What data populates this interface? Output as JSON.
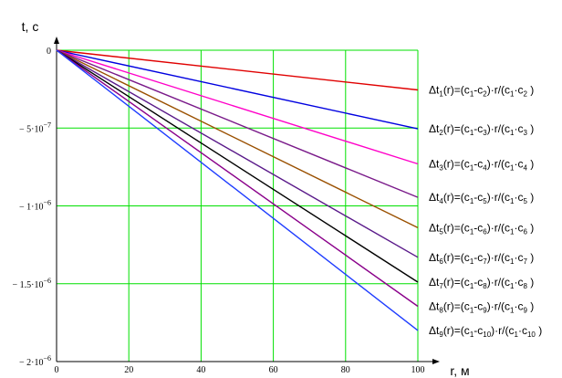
{
  "chart_data": {
    "type": "line",
    "ylabel": "t, c",
    "xlabel": "r, м",
    "xlim": [
      0,
      100
    ],
    "ylim": [
      -2e-06,
      0
    ],
    "grid": true,
    "grid_color": "#00e000",
    "legend_placement": "right",
    "x_ticks": [
      {
        "value": 0,
        "label": "0"
      },
      {
        "value": 20,
        "label": "20"
      },
      {
        "value": 40,
        "label": "40"
      },
      {
        "value": 60,
        "label": "60"
      },
      {
        "value": 80,
        "label": "80"
      },
      {
        "value": 100,
        "label": "100"
      }
    ],
    "y_ticks": [
      {
        "value": 0,
        "label": "0",
        "mantissa": "0",
        "exponent": ""
      },
      {
        "value": -5e-07,
        "label": "− 5·10^−7",
        "mantissa": "− 5·10",
        "exponent": "−7"
      },
      {
        "value": -1e-06,
        "label": "− 1·10^−6",
        "mantissa": "− 1·10",
        "exponent": "−6"
      },
      {
        "value": -1.5e-06,
        "label": "− 1.5·10^−6",
        "mantissa": "− 1.5·10",
        "exponent": "−6"
      },
      {
        "value": -2e-06,
        "label": "− 2·10^−6",
        "mantissa": "− 2·10",
        "exponent": "−6"
      }
    ],
    "x": [
      0,
      100
    ],
    "series": [
      {
        "name": "Δt1(r)=(c1-c2)·r/(c1·c2 )",
        "values": [
          0,
          -2.55e-07
        ],
        "color": "#e00000",
        "legend": [
          [
            "Δt",
            "1",
            "(r)=(c",
            "1",
            "-c",
            "2",
            ")·r/(c",
            "1",
            "·c",
            "2",
            " )"
          ]
        ]
      },
      {
        "name": "Δt2(r)=(c1-c3)·r/(c1·c3 )",
        "values": [
          0,
          -5.05e-07
        ],
        "color": "#0000e0",
        "legend": [
          [
            "Δt",
            "2",
            "(r)=(c",
            "1",
            "-c",
            "3",
            ")·r/(c",
            "1",
            "·c",
            "3",
            " )"
          ]
        ]
      },
      {
        "name": "Δt3(r)=(c1-c4)·r/(c1·c4 )",
        "values": [
          0,
          -7.3e-07
        ],
        "color": "#ff00c8",
        "legend": [
          [
            "Δt",
            "3",
            "(r)=(c",
            "1",
            "-c",
            "4",
            ")·r/(c",
            "1",
            "·c",
            "4",
            " )"
          ]
        ]
      },
      {
        "name": "Δt4(r)=(c1-c5)·r/(c1·c5 )",
        "values": [
          0,
          -9.45e-07
        ],
        "color": "#7a1a8a",
        "legend": [
          [
            "Δt",
            "4",
            "(r)=(c",
            "1",
            "-c",
            "5",
            ")·r/(c",
            "1",
            "·c",
            "5",
            " )"
          ]
        ]
      },
      {
        "name": "Δt5(r)=(c1-c6)·r/(c1·c6 )",
        "values": [
          0,
          -1.14e-06
        ],
        "color": "#9a5000",
        "legend": [
          [
            "Δt",
            "5",
            "(r)=(c",
            "1",
            "-c",
            "6",
            ")·r/(c",
            "1",
            "·c",
            "6",
            " )"
          ]
        ]
      },
      {
        "name": "Δt6(r)=(c1-c7)·r/(c1·c7 )",
        "values": [
          0,
          -1.33e-06
        ],
        "color": "#5a1a8a",
        "legend": [
          [
            "Δt",
            "6",
            "(r)=(c",
            "1",
            "-c",
            "7",
            ")·r/(c",
            "1",
            "·c",
            "7",
            " )"
          ]
        ]
      },
      {
        "name": "Δt7(r)=(c1-c8)·r/(c1·c8 )",
        "values": [
          0,
          -1.49e-06
        ],
        "color": "#000000",
        "legend": [
          [
            "Δt",
            "7",
            "(r)=(c",
            "1",
            "-c",
            "8",
            ")·r/(c",
            "1",
            "·c",
            "8",
            " )"
          ]
        ]
      },
      {
        "name": "Δt8(r)=(c1-c9)·r/(c1·c9 )",
        "values": [
          0,
          -1.645e-06
        ],
        "color": "#8a008a",
        "legend": [
          [
            "Δt",
            "8",
            "(r)=(c",
            "1",
            "-c",
            "9",
            ")·r/(c",
            "1",
            "·c",
            "9",
            " )"
          ]
        ]
      },
      {
        "name": "Δt9(r)=(c1-c10)·r/(c1·c10 )",
        "values": [
          0,
          -1.8e-06
        ],
        "color": "#1e3cff",
        "legend": [
          [
            "Δt",
            "9",
            "(r)=(c",
            "1",
            "-c",
            "10",
            ")·r/(c",
            "1",
            "·c",
            "10",
            " )"
          ]
        ]
      }
    ]
  }
}
